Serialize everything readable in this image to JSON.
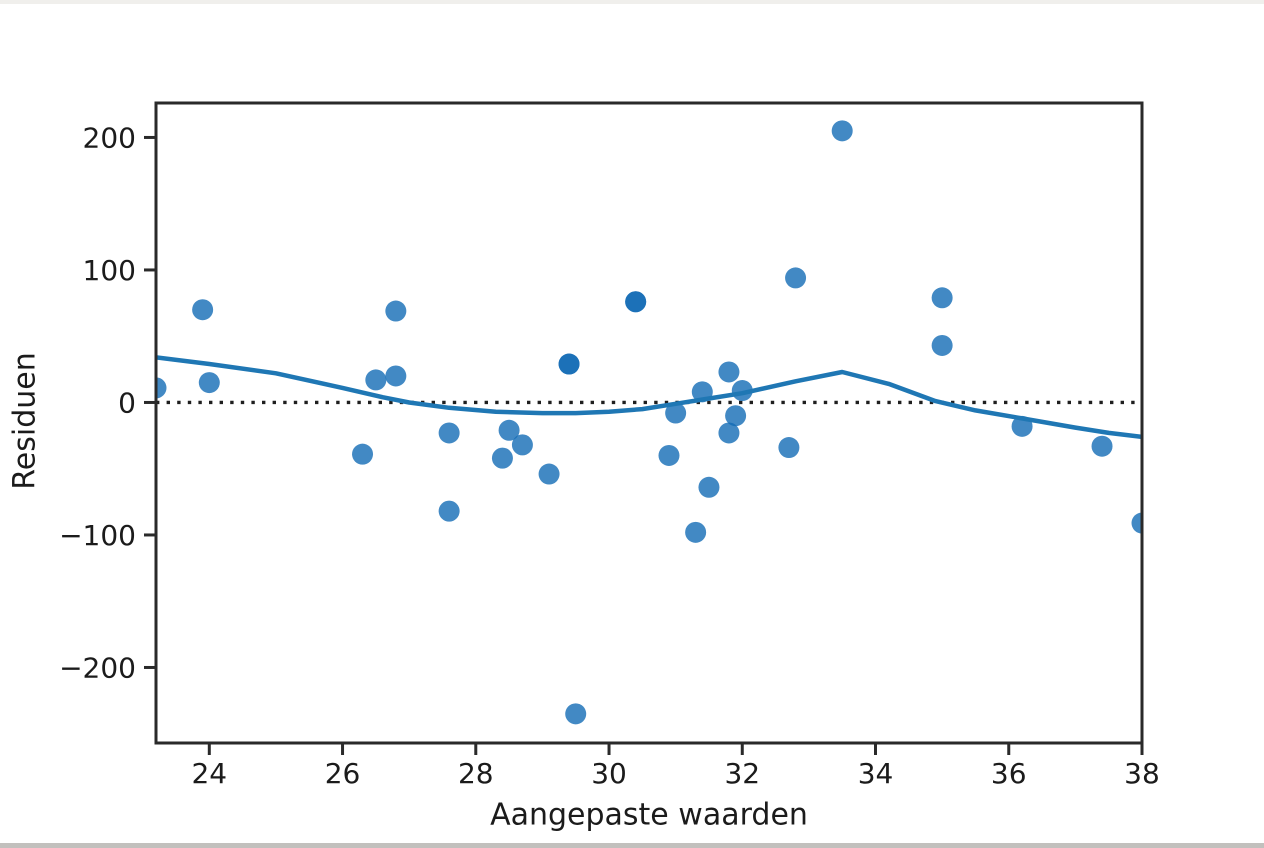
{
  "chart_data": {
    "type": "scatter",
    "title": "",
    "xlabel": "Aangepaste waarden",
    "ylabel": "Residuen",
    "xlim": [
      23.2,
      38.0
    ],
    "ylim": [
      -257,
      226
    ],
    "grid": false,
    "legend": "none",
    "x_ticks": [
      {
        "v": 24,
        "label": "24"
      },
      {
        "v": 26,
        "label": "26"
      },
      {
        "v": 28,
        "label": "28"
      },
      {
        "v": 30,
        "label": "30"
      },
      {
        "v": 32,
        "label": "32"
      },
      {
        "v": 34,
        "label": "34"
      },
      {
        "v": 36,
        "label": "36"
      },
      {
        "v": 38,
        "label": "38"
      }
    ],
    "y_ticks": [
      {
        "v": 200,
        "label": "200"
      },
      {
        "v": 100,
        "label": "100"
      },
      {
        "v": 0,
        "label": "0"
      },
      {
        "v": -100,
        "label": "−100"
      },
      {
        "v": -200,
        "label": "−200"
      }
    ],
    "zero_line": {
      "y": 0,
      "style": "dotted"
    },
    "points": [
      [
        23.2,
        11
      ],
      [
        23.9,
        70
      ],
      [
        24.0,
        15
      ],
      [
        26.3,
        -39
      ],
      [
        26.5,
        17
      ],
      [
        26.8,
        20
      ],
      [
        26.8,
        69
      ],
      [
        27.6,
        -23
      ],
      [
        27.6,
        -82
      ],
      [
        28.4,
        -42
      ],
      [
        28.5,
        -21
      ],
      [
        28.7,
        -32
      ],
      [
        29.1,
        -54
      ],
      [
        29.4,
        29
      ],
      [
        29.4,
        29
      ],
      [
        29.5,
        -235
      ],
      [
        30.4,
        76
      ],
      [
        30.4,
        76
      ],
      [
        30.9,
        -40
      ],
      [
        31.0,
        -8
      ],
      [
        31.3,
        -98
      ],
      [
        31.4,
        8
      ],
      [
        31.5,
        -64
      ],
      [
        31.8,
        23
      ],
      [
        31.8,
        -23
      ],
      [
        31.9,
        -10
      ],
      [
        32.0,
        9
      ],
      [
        32.7,
        -34
      ],
      [
        32.8,
        94
      ],
      [
        33.5,
        205
      ],
      [
        35.0,
        79
      ],
      [
        35.0,
        43
      ],
      [
        36.2,
        -18
      ],
      [
        37.4,
        -33
      ],
      [
        38.0,
        -91
      ]
    ],
    "smoother": [
      [
        23.2,
        34
      ],
      [
        24.0,
        29
      ],
      [
        25.0,
        22
      ],
      [
        26.0,
        11
      ],
      [
        26.6,
        4
      ],
      [
        27.0,
        0
      ],
      [
        27.6,
        -4
      ],
      [
        28.3,
        -7
      ],
      [
        29.0,
        -8
      ],
      [
        29.5,
        -8
      ],
      [
        30.0,
        -7
      ],
      [
        30.5,
        -5
      ],
      [
        31.0,
        -1
      ],
      [
        31.5,
        3
      ],
      [
        32.0,
        7
      ],
      [
        32.8,
        16
      ],
      [
        33.5,
        23
      ],
      [
        34.2,
        14
      ],
      [
        34.9,
        1
      ],
      [
        35.5,
        -6
      ],
      [
        36.2,
        -12
      ],
      [
        37.0,
        -19
      ],
      [
        37.5,
        -23
      ],
      [
        38.0,
        -26
      ]
    ],
    "colors": {
      "point": "#136cb5",
      "point_opacity": 0.8,
      "line": "#1f77b4",
      "zero_line": "#1f1f1f",
      "axis": "#2a2a2a",
      "text": "#1b1b1b"
    }
  }
}
